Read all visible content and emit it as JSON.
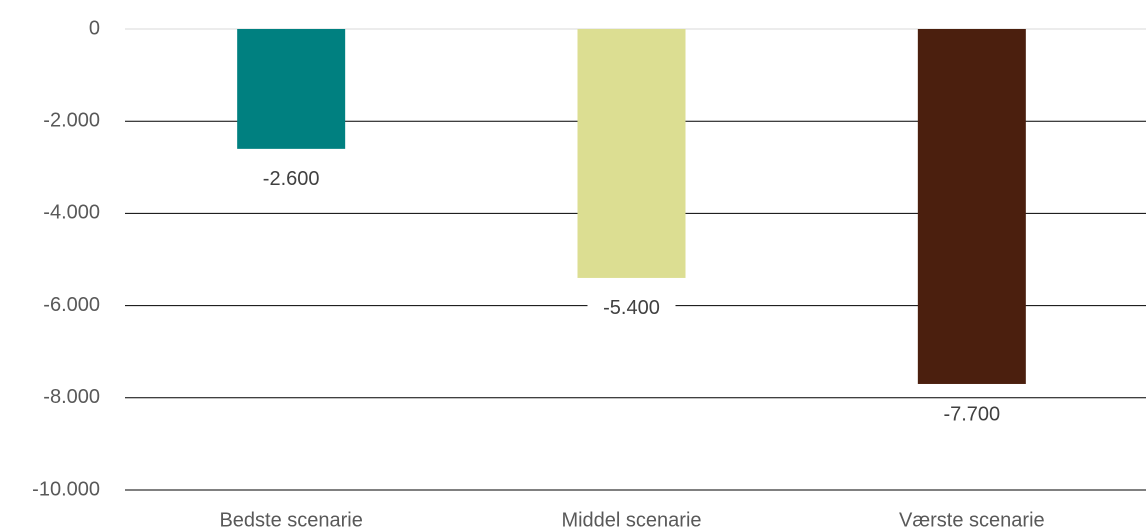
{
  "chart_data": {
    "type": "bar",
    "categories": [
      "Bedste scenarie",
      "Middel scenarie",
      "Værste scenarie"
    ],
    "values": [
      -2600,
      -5400,
      -7700
    ],
    "value_labels": [
      "-2.600",
      "-5.400",
      "-7.700"
    ],
    "colors": [
      "#008080",
      "#dcde92",
      "#4b1f0e"
    ],
    "ylim": [
      -10000,
      0
    ],
    "yticks": [
      0,
      {
        "value": -2000,
        "label": "-2.000"
      },
      {
        "value": -4000,
        "label": "-4.000"
      },
      {
        "value": -6000,
        "label": "-6.000"
      },
      {
        "value": -8000,
        "label": "-8.000"
      },
      {
        "value": -10000,
        "label": "-10.000"
      }
    ],
    "grid": true
  }
}
